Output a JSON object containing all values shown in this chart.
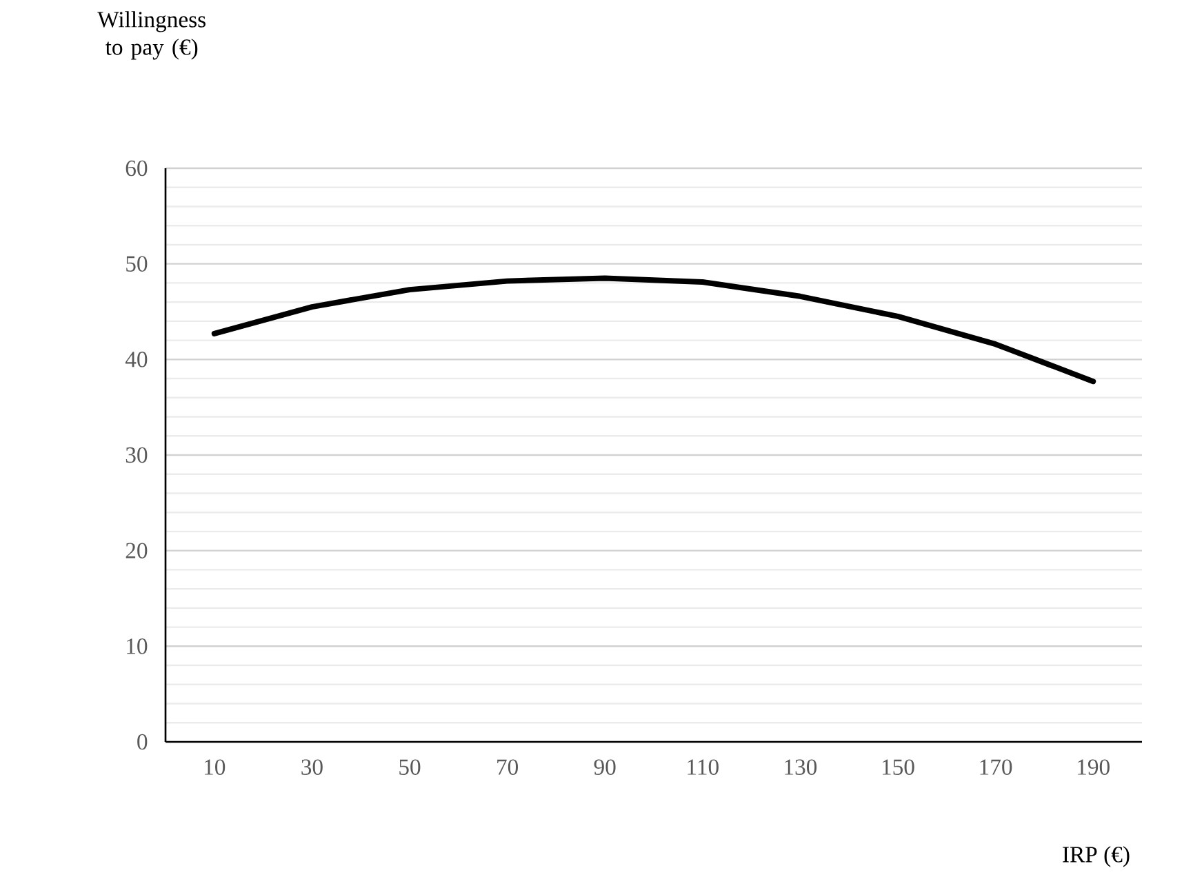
{
  "chart_data": {
    "type": "line",
    "ylabel": "Willingness to pay (€)",
    "xlabel": "IRP (€)",
    "categories": [
      "10",
      "30",
      "50",
      "70",
      "90",
      "110",
      "130",
      "150",
      "170",
      "190"
    ],
    "series": [
      {
        "color": "#000000",
        "values": [
          42.7,
          45.5,
          47.3,
          48.2,
          48.5,
          48.1,
          46.6,
          44.5,
          41.6,
          37.7
        ]
      }
    ],
    "ylim": [
      0,
      60
    ],
    "yticks": [
      0,
      {
        "value": 2,
        "label": null
      },
      {
        "value": 4,
        "label": null
      },
      {
        "value": 6,
        "label": null
      },
      {
        "value": 8,
        "label": null
      },
      10,
      {
        "value": 12,
        "label": null
      },
      {
        "value": 14,
        "label": null
      },
      {
        "value": 16,
        "label": null
      },
      {
        "value": 18,
        "label": null
      },
      20,
      {
        "value": 22,
        "label": null
      },
      {
        "value": 24,
        "label": null
      },
      {
        "value": 26,
        "label": null
      },
      {
        "value": 28,
        "label": null
      },
      30,
      {
        "value": 32,
        "label": null
      },
      {
        "value": 34,
        "label": null
      },
      {
        "value": 36,
        "label": null
      },
      {
        "value": 38,
        "label": null
      },
      40,
      {
        "value": 42,
        "label": null
      },
      {
        "value": 44,
        "label": null
      },
      {
        "value": 46,
        "label": null
      },
      {
        "value": 48,
        "label": null
      },
      50,
      {
        "value": 52,
        "label": null
      },
      {
        "value": 54,
        "label": null
      },
      {
        "value": 56,
        "label": null
      },
      {
        "value": 58,
        "label": null
      },
      60
    ],
    "grid": "y"
  }
}
